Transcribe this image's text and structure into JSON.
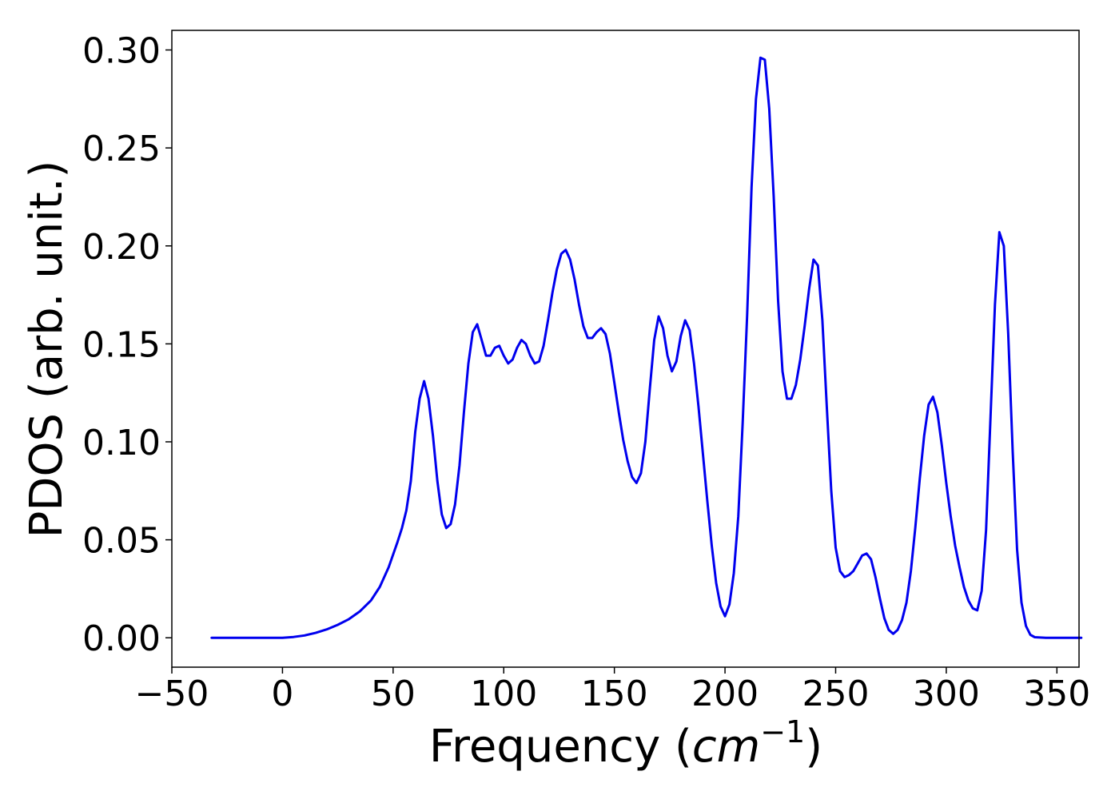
{
  "chart_data": {
    "type": "line",
    "title": "",
    "xlabel": "Frequency (",
    "xlabel_math": "cm",
    "xlabel_sup": "−1",
    "xlabel_close": ")",
    "ylabel": "PDOS (arb. unit.)",
    "xlim": [
      -50,
      360
    ],
    "ylim": [
      -0.015,
      0.31
    ],
    "xticks": [
      -50,
      0,
      50,
      100,
      150,
      200,
      250,
      300,
      350
    ],
    "xtick_labels": [
      "−50",
      "0",
      "50",
      "100",
      "150",
      "200",
      "250",
      "300",
      "350"
    ],
    "yticks": [
      0.0,
      0.05,
      0.1,
      0.15,
      0.2,
      0.25,
      0.3
    ],
    "ytick_labels": [
      "0.00",
      "0.05",
      "0.10",
      "0.15",
      "0.20",
      "0.25",
      "0.30"
    ],
    "grid": false,
    "legend": "none",
    "colors": {
      "line": "#0000ee",
      "axes": "#000000"
    },
    "series": [
      {
        "points": [
          [
            -32,
            0.0
          ],
          [
            -10,
            0.0
          ],
          [
            0,
            0.0
          ],
          [
            5,
            0.0004
          ],
          [
            10,
            0.0012
          ],
          [
            15,
            0.0025
          ],
          [
            20,
            0.0043
          ],
          [
            25,
            0.0066
          ],
          [
            30,
            0.0095
          ],
          [
            35,
            0.0135
          ],
          [
            40,
            0.019
          ],
          [
            44,
            0.026
          ],
          [
            48,
            0.036
          ],
          [
            52,
            0.049
          ],
          [
            54,
            0.056
          ],
          [
            56,
            0.065
          ],
          [
            58,
            0.08
          ],
          [
            60,
            0.105
          ],
          [
            62,
            0.122
          ],
          [
            64,
            0.131
          ],
          [
            66,
            0.122
          ],
          [
            68,
            0.103
          ],
          [
            70,
            0.08
          ],
          [
            72,
            0.063
          ],
          [
            74,
            0.056
          ],
          [
            76,
            0.058
          ],
          [
            78,
            0.068
          ],
          [
            80,
            0.088
          ],
          [
            82,
            0.115
          ],
          [
            84,
            0.14
          ],
          [
            86,
            0.156
          ],
          [
            88,
            0.16
          ],
          [
            90,
            0.152
          ],
          [
            92,
            0.144
          ],
          [
            94,
            0.144
          ],
          [
            96,
            0.148
          ],
          [
            98,
            0.149
          ],
          [
            100,
            0.144
          ],
          [
            102,
            0.14
          ],
          [
            104,
            0.142
          ],
          [
            106,
            0.148
          ],
          [
            108,
            0.152
          ],
          [
            110,
            0.15
          ],
          [
            112,
            0.144
          ],
          [
            114,
            0.14
          ],
          [
            116,
            0.141
          ],
          [
            118,
            0.149
          ],
          [
            120,
            0.162
          ],
          [
            122,
            0.176
          ],
          [
            124,
            0.188
          ],
          [
            126,
            0.196
          ],
          [
            128,
            0.198
          ],
          [
            130,
            0.193
          ],
          [
            132,
            0.183
          ],
          [
            134,
            0.17
          ],
          [
            136,
            0.159
          ],
          [
            138,
            0.153
          ],
          [
            140,
            0.153
          ],
          [
            142,
            0.156
          ],
          [
            144,
            0.158
          ],
          [
            146,
            0.155
          ],
          [
            148,
            0.145
          ],
          [
            150,
            0.13
          ],
          [
            152,
            0.115
          ],
          [
            154,
            0.101
          ],
          [
            156,
            0.09
          ],
          [
            158,
            0.082
          ],
          [
            160,
            0.079
          ],
          [
            162,
            0.084
          ],
          [
            164,
            0.1
          ],
          [
            166,
            0.127
          ],
          [
            168,
            0.152
          ],
          [
            170,
            0.164
          ],
          [
            172,
            0.158
          ],
          [
            174,
            0.144
          ],
          [
            176,
            0.136
          ],
          [
            178,
            0.141
          ],
          [
            180,
            0.154
          ],
          [
            182,
            0.162
          ],
          [
            184,
            0.157
          ],
          [
            186,
            0.14
          ],
          [
            188,
            0.118
          ],
          [
            190,
            0.094
          ],
          [
            192,
            0.07
          ],
          [
            194,
            0.047
          ],
          [
            196,
            0.028
          ],
          [
            198,
            0.016
          ],
          [
            200,
            0.011
          ],
          [
            202,
            0.017
          ],
          [
            204,
            0.033
          ],
          [
            206,
            0.062
          ],
          [
            208,
            0.11
          ],
          [
            210,
            0.165
          ],
          [
            212,
            0.23
          ],
          [
            214,
            0.275
          ],
          [
            216,
            0.296
          ],
          [
            218,
            0.295
          ],
          [
            220,
            0.27
          ],
          [
            222,
            0.225
          ],
          [
            224,
            0.172
          ],
          [
            226,
            0.136
          ],
          [
            228,
            0.122
          ],
          [
            230,
            0.122
          ],
          [
            232,
            0.129
          ],
          [
            234,
            0.142
          ],
          [
            236,
            0.159
          ],
          [
            238,
            0.178
          ],
          [
            240,
            0.193
          ],
          [
            242,
            0.19
          ],
          [
            244,
            0.162
          ],
          [
            246,
            0.118
          ],
          [
            248,
            0.075
          ],
          [
            250,
            0.046
          ],
          [
            252,
            0.034
          ],
          [
            254,
            0.031
          ],
          [
            256,
            0.032
          ],
          [
            258,
            0.034
          ],
          [
            260,
            0.038
          ],
          [
            262,
            0.042
          ],
          [
            264,
            0.043
          ],
          [
            266,
            0.04
          ],
          [
            268,
            0.031
          ],
          [
            270,
            0.02
          ],
          [
            272,
            0.01
          ],
          [
            274,
            0.004
          ],
          [
            276,
            0.002
          ],
          [
            278,
            0.004
          ],
          [
            280,
            0.009
          ],
          [
            282,
            0.018
          ],
          [
            284,
            0.034
          ],
          [
            286,
            0.056
          ],
          [
            288,
            0.081
          ],
          [
            290,
            0.103
          ],
          [
            292,
            0.119
          ],
          [
            294,
            0.123
          ],
          [
            296,
            0.115
          ],
          [
            298,
            0.098
          ],
          [
            300,
            0.079
          ],
          [
            302,
            0.062
          ],
          [
            304,
            0.047
          ],
          [
            306,
            0.036
          ],
          [
            308,
            0.026
          ],
          [
            310,
            0.019
          ],
          [
            312,
            0.015
          ],
          [
            314,
            0.014
          ],
          [
            316,
            0.024
          ],
          [
            318,
            0.055
          ],
          [
            320,
            0.113
          ],
          [
            322,
            0.17
          ],
          [
            324,
            0.207
          ],
          [
            326,
            0.2
          ],
          [
            328,
            0.155
          ],
          [
            330,
            0.095
          ],
          [
            332,
            0.045
          ],
          [
            334,
            0.018
          ],
          [
            336,
            0.006
          ],
          [
            338,
            0.0015
          ],
          [
            340,
            0.0003
          ],
          [
            345,
            0.0
          ],
          [
            361,
            0.0
          ]
        ]
      }
    ]
  }
}
